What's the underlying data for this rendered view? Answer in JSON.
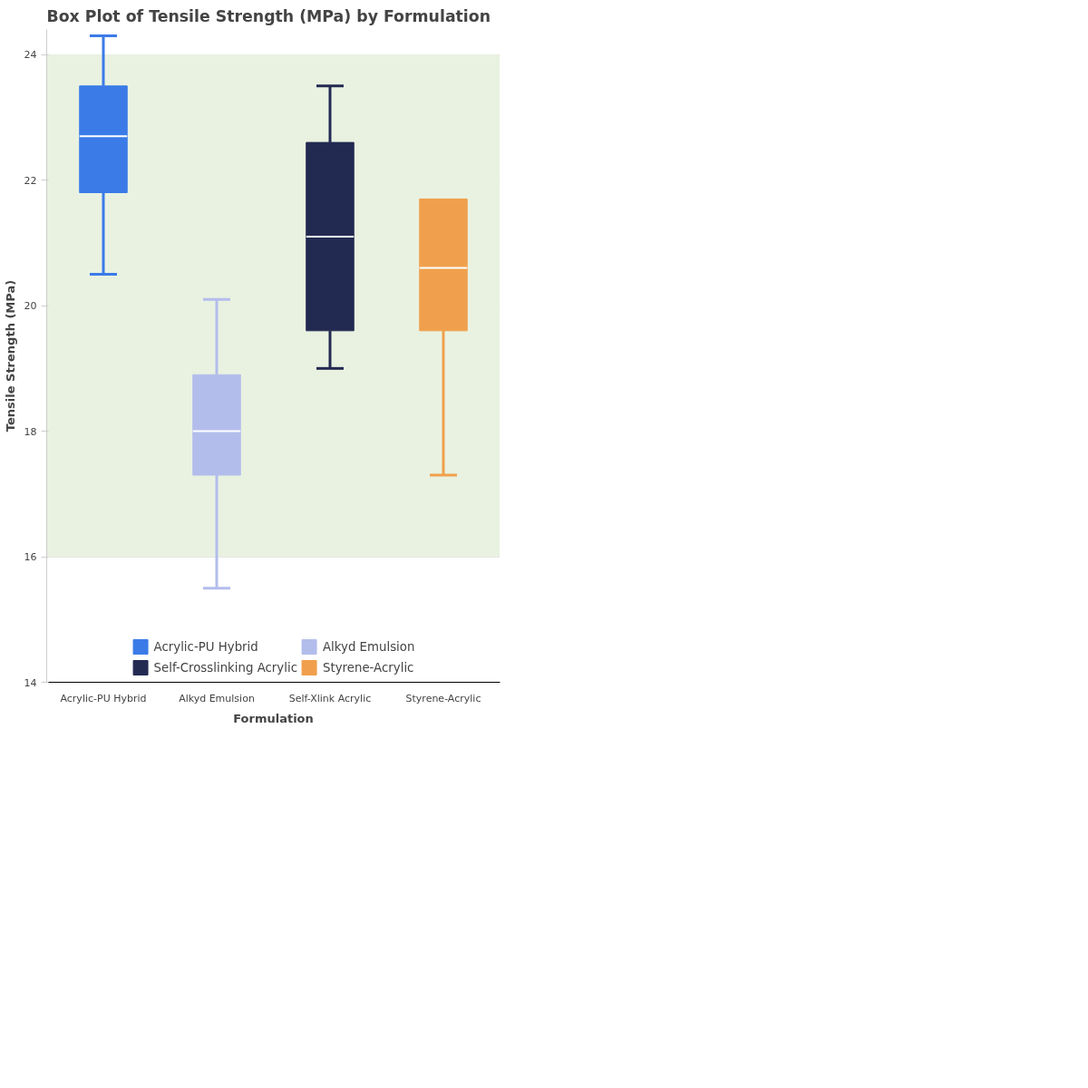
{
  "chart_data": {
    "type": "box",
    "title": "Box Plot of Tensile Strength (MPa) by Formulation",
    "xlabel": "Formulation",
    "ylabel": "Tensile Strength (MPa)",
    "categories": [
      "Acrylic-PU Hybrid",
      "Alkyd Emulsion",
      "Self-Xlink Acrylic",
      "Styrene-Acrylic"
    ],
    "series": [
      {
        "name": "Acrylic-PU Hybrid",
        "color": "#3b7be8",
        "boxes": [
          {
            "low": 20.5,
            "q1": 21.8,
            "median": 22.7,
            "q3": 23.5,
            "high": 24.3
          },
          null,
          null,
          null
        ]
      },
      {
        "name": "Alkyd Emulsion",
        "color": "#b3bdec",
        "boxes": [
          null,
          {
            "low": 15.5,
            "q1": 17.3,
            "median": 18.0,
            "q3": 18.9,
            "high": 20.1
          },
          null,
          null
        ]
      },
      {
        "name": "Self-Crosslinking Acrylic",
        "color": "#232a52",
        "boxes": [
          null,
          null,
          {
            "low": 19.0,
            "q1": 19.6,
            "median": 21.1,
            "q3": 22.6,
            "high": 23.5
          },
          null
        ]
      },
      {
        "name": "Styrene-Acrylic",
        "color": "#f0a04c",
        "boxes": [
          null,
          null,
          null,
          {
            "low": 17.3,
            "q1": 19.6,
            "median": 20.6,
            "q3": 21.7,
            "high": null
          }
        ]
      }
    ],
    "ylim": [
      14,
      24.4
    ],
    "yticks": [
      14,
      16,
      18,
      20,
      22,
      24
    ],
    "bands": [
      {
        "axis": "y",
        "from": 16,
        "to": 24,
        "color": "#e9f2e1"
      }
    ],
    "grid": "y",
    "legend": "bottom"
  }
}
